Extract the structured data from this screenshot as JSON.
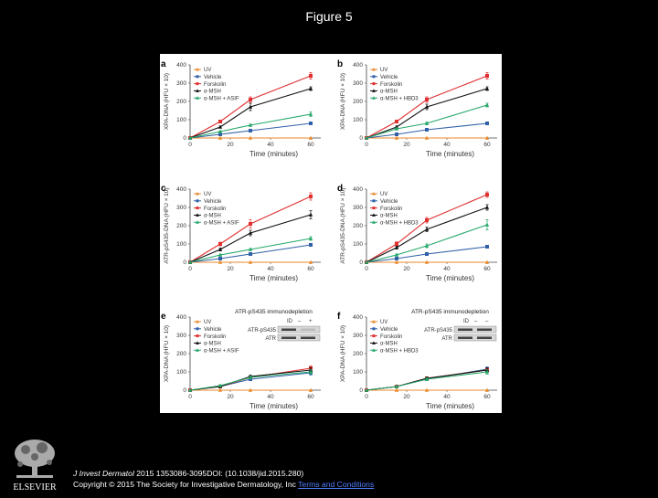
{
  "page": {
    "title": "Figure 5"
  },
  "footer": {
    "journal": "J Invest Dermatol",
    "citation_rest": " 2015 1353086-3095DOI: (10.1038/jid.2015.280)",
    "copyright": "Copyright © 2015 The Society for Investigative Dermatology, Inc ",
    "terms_link": "Terms and Conditions",
    "publisher": "ELSEVIER"
  },
  "colors": {
    "UV": "#e8892a",
    "Vehicle": "#3060a8",
    "Forskolin": "#e03030",
    "a-MSH": "#111111",
    "combo": "#25a86a"
  },
  "shared_axes": {
    "xlabel": "Time (minutes)",
    "xticks": [
      0,
      20,
      40,
      60
    ],
    "yticks": [
      0,
      100,
      200,
      300,
      400
    ],
    "xlim": [
      0,
      65
    ],
    "ylim": [
      0,
      400
    ]
  },
  "chart_data": [
    {
      "type": "line",
      "panel": "a",
      "ylabel": "XPA-DNA (HFU × 10)",
      "x": [
        0,
        15,
        30,
        60
      ],
      "series": [
        {
          "name": "UV",
          "key": "UV",
          "values": [
            0,
            0,
            0,
            0
          ],
          "err": [
            0,
            0,
            0,
            0
          ]
        },
        {
          "name": "Vehicle",
          "key": "Vehicle",
          "values": [
            0,
            20,
            40,
            80
          ],
          "err": [
            0,
            3,
            4,
            6
          ]
        },
        {
          "name": "Forskolin",
          "key": "Forskolin",
          "values": [
            0,
            90,
            210,
            340
          ],
          "err": [
            0,
            8,
            15,
            18
          ]
        },
        {
          "name": "α-MSH",
          "key": "a-MSH",
          "values": [
            0,
            60,
            170,
            270
          ],
          "err": [
            0,
            6,
            20,
            10
          ]
        },
        {
          "name": "α-MSH + ASIF",
          "key": "combo",
          "values": [
            0,
            35,
            70,
            130
          ],
          "err": [
            0,
            4,
            6,
            12
          ]
        }
      ]
    },
    {
      "type": "line",
      "panel": "b",
      "ylabel": "XPA-DNA (HFU × 10)",
      "x": [
        0,
        15,
        30,
        60
      ],
      "series": [
        {
          "name": "UV",
          "key": "UV",
          "values": [
            0,
            0,
            0,
            0
          ],
          "err": [
            0,
            0,
            0,
            0
          ]
        },
        {
          "name": "Vehicle",
          "key": "Vehicle",
          "values": [
            0,
            20,
            45,
            80
          ],
          "err": [
            0,
            3,
            4,
            6
          ]
        },
        {
          "name": "Forskolin",
          "key": "Forskolin",
          "values": [
            0,
            90,
            210,
            340
          ],
          "err": [
            0,
            8,
            15,
            18
          ]
        },
        {
          "name": "α-MSH",
          "key": "a-MSH",
          "values": [
            0,
            60,
            170,
            270
          ],
          "err": [
            0,
            6,
            15,
            10
          ]
        },
        {
          "name": "α-MSH + HBD3",
          "key": "combo",
          "values": [
            0,
            50,
            80,
            180
          ],
          "err": [
            0,
            5,
            8,
            10
          ]
        }
      ]
    },
    {
      "type": "line",
      "panel": "c",
      "ylabel": "ATR-pS435-DNA (HFU × 10)",
      "x": [
        0,
        15,
        30,
        60
      ],
      "series": [
        {
          "name": "UV",
          "key": "UV",
          "values": [
            0,
            0,
            0,
            0
          ],
          "err": [
            0,
            0,
            0,
            0
          ]
        },
        {
          "name": "Vehicle",
          "key": "Vehicle",
          "values": [
            0,
            20,
            45,
            95
          ],
          "err": [
            0,
            3,
            4,
            6
          ]
        },
        {
          "name": "Forskolin",
          "key": "Forskolin",
          "values": [
            0,
            100,
            210,
            360
          ],
          "err": [
            0,
            10,
            22,
            20
          ]
        },
        {
          "name": "α-MSH",
          "key": "a-MSH",
          "values": [
            0,
            70,
            160,
            260
          ],
          "err": [
            0,
            8,
            15,
            22
          ]
        },
        {
          "name": "α-MSH + ASIF",
          "key": "combo",
          "values": [
            0,
            40,
            70,
            130
          ],
          "err": [
            0,
            4,
            6,
            10
          ]
        }
      ]
    },
    {
      "type": "line",
      "panel": "d",
      "ylabel": "ATR-pS435-DNA (HFU × 10)",
      "x": [
        0,
        15,
        30,
        60
      ],
      "series": [
        {
          "name": "UV",
          "key": "UV",
          "values": [
            0,
            0,
            0,
            0
          ],
          "err": [
            0,
            0,
            0,
            0
          ]
        },
        {
          "name": "Vehicle",
          "key": "Vehicle",
          "values": [
            0,
            20,
            45,
            85
          ],
          "err": [
            0,
            3,
            4,
            6
          ]
        },
        {
          "name": "Forskolin",
          "key": "Forskolin",
          "values": [
            0,
            100,
            230,
            370
          ],
          "err": [
            0,
            12,
            15,
            15
          ]
        },
        {
          "name": "α-MSH",
          "key": "a-MSH",
          "values": [
            0,
            80,
            180,
            300
          ],
          "err": [
            0,
            8,
            12,
            15
          ]
        },
        {
          "name": "α-MSH + HBD3",
          "key": "combo",
          "values": [
            0,
            40,
            90,
            205
          ],
          "err": [
            0,
            5,
            10,
            28
          ]
        }
      ]
    },
    {
      "type": "line",
      "panel": "e",
      "ylabel": "XPA-DNA (HFU × 10)",
      "title": "ATR-pS435 immunodepletion",
      "x": [
        0,
        15,
        30,
        60
      ],
      "blot": {
        "id_label": "ID",
        "id_values": [
          "–",
          "+"
        ],
        "rows": [
          "ATR-pS435",
          "ATR"
        ]
      },
      "series": [
        {
          "name": "UV",
          "key": "UV",
          "values": [
            0,
            0,
            0,
            0
          ],
          "err": [
            0,
            0,
            0,
            0
          ]
        },
        {
          "name": "Vehicle",
          "key": "Vehicle",
          "values": [
            0,
            20,
            60,
            95
          ],
          "err": [
            0,
            4,
            8,
            12
          ]
        },
        {
          "name": "Forskolin",
          "key": "Forskolin",
          "values": [
            0,
            20,
            70,
            120
          ],
          "err": [
            0,
            4,
            8,
            12
          ]
        },
        {
          "name": "α-MSH",
          "key": "a-MSH",
          "values": [
            0,
            20,
            75,
            110
          ],
          "err": [
            0,
            4,
            8,
            12
          ]
        },
        {
          "name": "α-MSH + ASIF",
          "key": "combo",
          "values": [
            0,
            25,
            70,
            100
          ],
          "err": [
            0,
            4,
            8,
            12
          ]
        }
      ]
    },
    {
      "type": "line",
      "panel": "f",
      "ylabel": "XPA-DNA (HFU × 10)",
      "title": "ATR-pS435 immunodepletion",
      "x": [
        0,
        15,
        30,
        60
      ],
      "blot": {
        "id_label": "ID",
        "id_values": [
          "–",
          "–"
        ],
        "rows": [
          "ATR-pS435",
          "ATR"
        ]
      },
      "series": [
        {
          "name": "UV",
          "key": "UV",
          "values": [
            0,
            0,
            0,
            0
          ],
          "err": [
            0,
            0,
            0,
            0
          ]
        },
        {
          "name": "Vehicle",
          "key": "Vehicle",
          "values": [
            0,
            20,
            60,
            115
          ],
          "err": [
            0,
            4,
            8,
            12
          ]
        },
        {
          "name": "Forskolin",
          "key": "Forskolin",
          "values": [
            0,
            20,
            65,
            110
          ],
          "err": [
            0,
            4,
            8,
            12
          ]
        },
        {
          "name": "α-MSH",
          "key": "a-MSH",
          "values": [
            0,
            20,
            65,
            110
          ],
          "err": [
            0,
            4,
            8,
            12
          ]
        },
        {
          "name": "α-MSH + HBD3",
          "key": "combo",
          "values": [
            0,
            20,
            60,
            100
          ],
          "err": [
            0,
            4,
            8,
            12
          ]
        }
      ]
    }
  ]
}
